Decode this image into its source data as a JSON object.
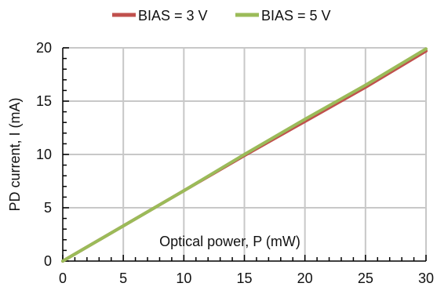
{
  "chart_data": {
    "type": "line",
    "xlabel": "Optical power, P (mW)",
    "ylabel": "PD current, I (mA)",
    "xlim": [
      0,
      30
    ],
    "ylim": [
      0,
      20
    ],
    "x_ticks": [
      0,
      5,
      10,
      15,
      20,
      25,
      30
    ],
    "y_ticks": [
      0,
      5,
      10,
      15,
      20
    ],
    "grid": true,
    "legend_position": "top",
    "series": [
      {
        "name": "BIAS = 3 V",
        "color": "#c0504d",
        "x": [
          0,
          5,
          10,
          15,
          20,
          25,
          30
        ],
        "y": [
          0,
          3.3,
          6.6,
          9.9,
          13.1,
          16.3,
          19.7
        ]
      },
      {
        "name": "BIAS = 5 V",
        "color": "#9bbb59",
        "x": [
          0,
          5,
          10,
          15,
          20,
          25,
          30
        ],
        "y": [
          0,
          3.3,
          6.6,
          10.0,
          13.3,
          16.5,
          19.9
        ]
      }
    ]
  }
}
